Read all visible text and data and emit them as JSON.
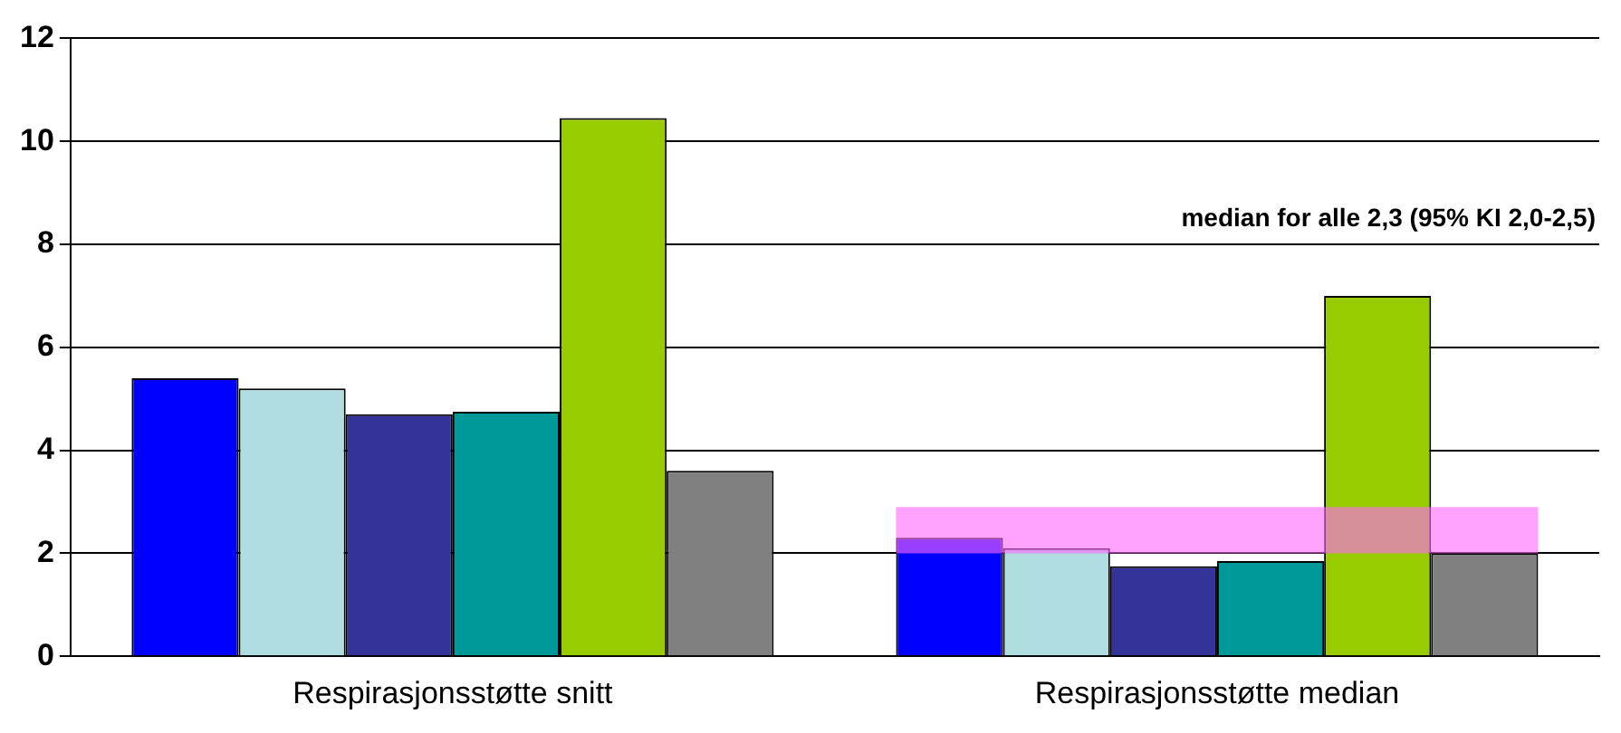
{
  "chart_data": {
    "type": "bar",
    "categories": [
      "Respirasjonsstøtte snitt",
      "Respirasjonsstøtte median"
    ],
    "series": [
      {
        "color": "#0000ff",
        "values": [
          5.4,
          2.3
        ]
      },
      {
        "color": "#b0dde0",
        "values": [
          5.2,
          2.1
        ]
      },
      {
        "color": "#333399",
        "values": [
          4.7,
          1.75
        ]
      },
      {
        "color": "#009999",
        "values": [
          4.75,
          1.85
        ]
      },
      {
        "color": "#99cc00",
        "values": [
          10.45,
          7.0
        ]
      },
      {
        "color": "#808080",
        "values": [
          3.6,
          2.0
        ]
      }
    ],
    "ylim": [
      0,
      12
    ],
    "yticks": [
      0,
      2,
      4,
      6,
      8,
      10,
      12
    ],
    "grid": "y",
    "legend": false,
    "annotations": [
      "median for alle 2,3 (95% KI 2,0-2,5)"
    ],
    "bands": [
      {
        "axis": "y",
        "from": 2.0,
        "to": 2.9,
        "color": "#ff66ff"
      }
    ]
  }
}
